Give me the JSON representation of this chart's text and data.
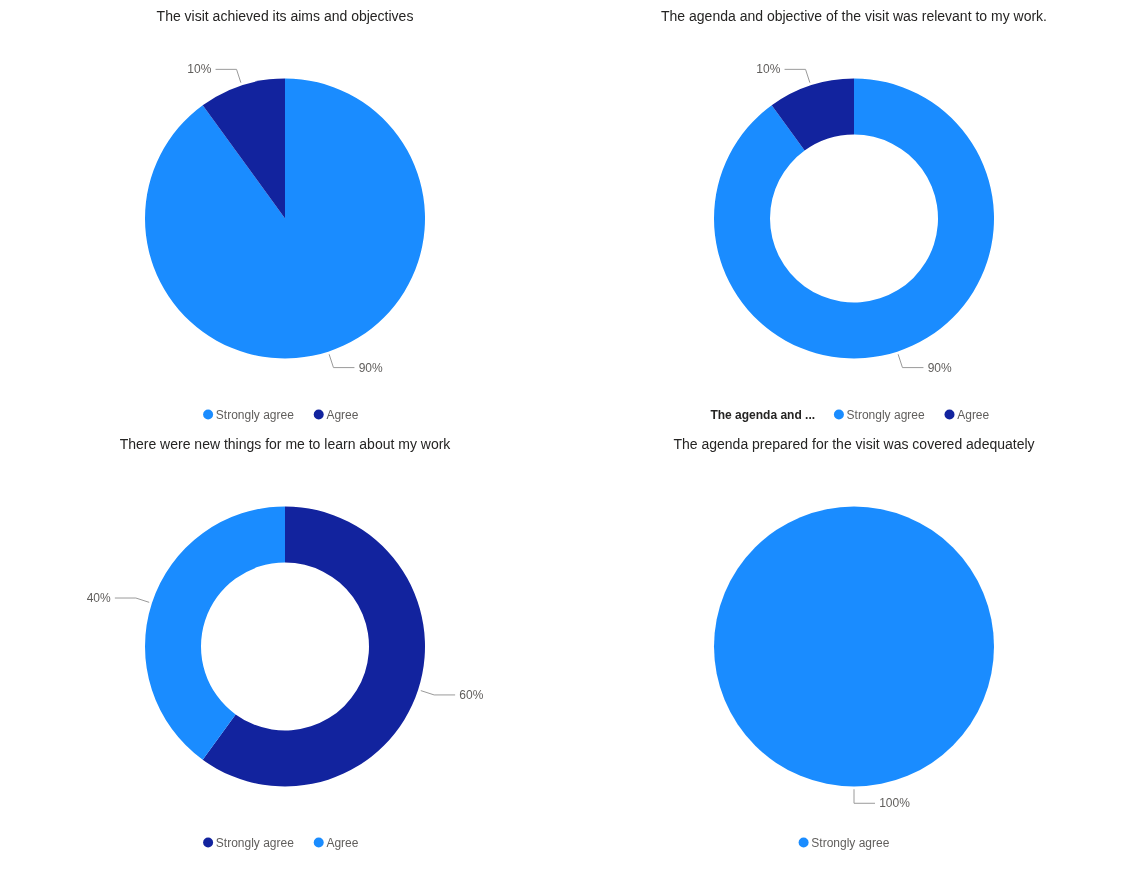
{
  "chart_data": [
    {
      "type": "pie",
      "title": "The visit achieved its aims and objectives",
      "categories": [
        "Strongly agree",
        "Agree"
      ],
      "values": [
        90,
        10
      ],
      "colors": [
        "#1a8cff",
        "#12239e"
      ],
      "value_labels": [
        "90%",
        "10%"
      ],
      "legend": "bottom"
    },
    {
      "type": "donut",
      "title": "The agenda and objective of the visit was relevant to my work.",
      "categories": [
        "Strongly agree",
        "Agree"
      ],
      "values": [
        90,
        10
      ],
      "colors": [
        "#1a8cff",
        "#12239e"
      ],
      "value_labels": [
        "90%",
        "10%"
      ],
      "legend": "bottom",
      "legend_title": "The agenda and ..."
    },
    {
      "type": "donut",
      "title": "There were new things for me to learn about my work",
      "categories": [
        "Strongly agree",
        "Agree"
      ],
      "values": [
        60,
        40
      ],
      "colors": [
        "#12239e",
        "#1a8cff"
      ],
      "value_labels": [
        "60%",
        "40%"
      ],
      "legend": "bottom"
    },
    {
      "type": "pie",
      "title": "The agenda prepared for the visit was covered adequately",
      "categories": [
        "Strongly agree"
      ],
      "values": [
        100
      ],
      "colors": [
        "#1a8cff"
      ],
      "value_labels": [
        "100%"
      ],
      "legend": "bottom"
    }
  ]
}
